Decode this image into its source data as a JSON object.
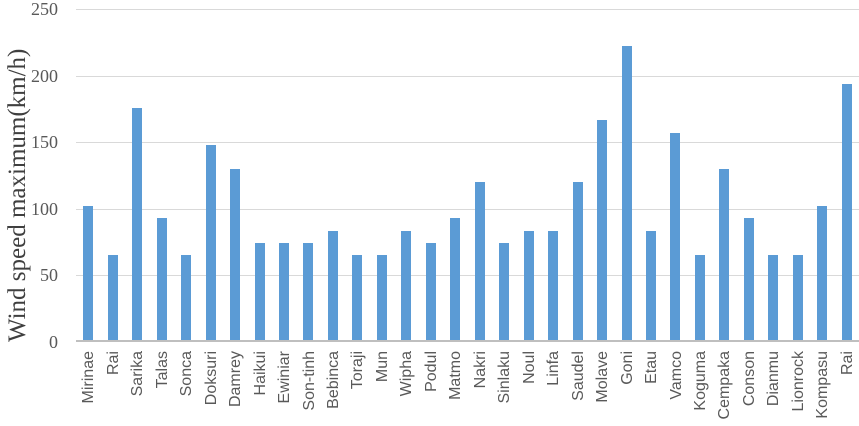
{
  "chart_data": {
    "type": "bar",
    "title": "",
    "xlabel": "",
    "ylabel": "Wind speed maximum(km/h)",
    "ylim": [
      0,
      250
    ],
    "yticks": [
      0,
      50,
      100,
      150,
      200,
      250
    ],
    "grid": true,
    "legend_position": "none",
    "bar_color": "#5B9BD5",
    "categories": [
      "Mirinae",
      "Rai",
      "Sarika",
      "Talas",
      "Sonca",
      "Doksuri",
      "Damrey",
      "Haikui",
      "Ewiniar",
      "Son-tinh",
      "Bebinca",
      "Toraji",
      "Mun",
      "Wipha",
      "Podul",
      "Matmo",
      "Nakri",
      "Sinlaku",
      "Noul",
      "Linfa",
      "Saudel",
      "Molave",
      "Goni",
      "Etau",
      "Vamco",
      "Koguma",
      "Cempaka",
      "Conson",
      "Dianmu",
      "Lionrock",
      "Kompasu",
      "Rai"
    ],
    "values": [
      102,
      65,
      176,
      93,
      65,
      148,
      130,
      74,
      74,
      74,
      83,
      65,
      65,
      83,
      74,
      93,
      120,
      74,
      83,
      83,
      120,
      167,
      222,
      83,
      157,
      65,
      130,
      93,
      65,
      65,
      102,
      194
    ]
  },
  "colors": {
    "bar": "#5B9BD5",
    "gridline": "#D9D9D9",
    "axis_line": "#BFBFBF",
    "tick_label": "#595959",
    "axis_title": "#3F3F3F",
    "background": "#FFFFFF"
  }
}
